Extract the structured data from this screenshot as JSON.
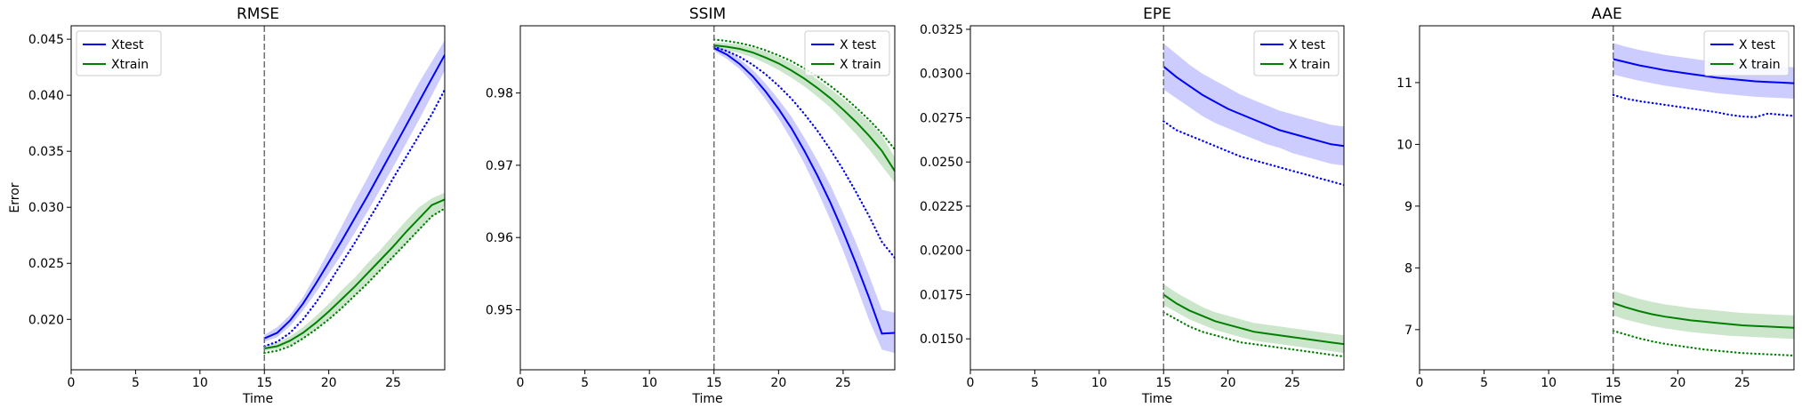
{
  "chart_data": [
    {
      "type": "line",
      "title": "RMSE",
      "xlabel": "Time",
      "ylabel": "Error",
      "xlim": [
        0,
        29
      ],
      "ylim": [
        0.0155,
        0.0462
      ],
      "xticks": [
        0,
        5,
        10,
        15,
        20,
        25
      ],
      "yticks": [
        0.02,
        0.025,
        0.03,
        0.035,
        0.04,
        0.045
      ],
      "ytick_labels": [
        "0.020",
        "0.025",
        "0.030",
        "0.035",
        "0.040",
        "0.045"
      ],
      "vline_x": 15,
      "legend": {
        "position": "upper-left",
        "entries": [
          {
            "label": "Xtest",
            "color": "#0000ff"
          },
          {
            "label": "Xtrain",
            "color": "#008000"
          }
        ]
      },
      "x": [
        15,
        16,
        17,
        18,
        19,
        20,
        21,
        22,
        23,
        24,
        25,
        26,
        27,
        28,
        29
      ],
      "series": [
        {
          "color": "#0000ff",
          "style": "solid",
          "values": [
            0.0183,
            0.0188,
            0.0199,
            0.0214,
            0.0232,
            0.0251,
            0.027,
            0.029,
            0.031,
            0.0331,
            0.0352,
            0.0373,
            0.0394,
            0.0415,
            0.0436
          ],
          "band_low": [
            0.018,
            0.0184,
            0.0194,
            0.0208,
            0.0224,
            0.0241,
            0.0258,
            0.0277,
            0.0296,
            0.0316,
            0.0336,
            0.0357,
            0.0378,
            0.04,
            0.0422
          ],
          "band_high": [
            0.0186,
            0.0193,
            0.0204,
            0.022,
            0.024,
            0.0261,
            0.0283,
            0.0305,
            0.0326,
            0.0348,
            0.0369,
            0.039,
            0.0411,
            0.043,
            0.0449
          ]
        },
        {
          "color": "#0000ff",
          "style": "dotted",
          "values": [
            0.0176,
            0.018,
            0.0188,
            0.02,
            0.0215,
            0.0232,
            0.025,
            0.0268,
            0.0287,
            0.0306,
            0.0326,
            0.0345,
            0.0364,
            0.0383,
            0.0405
          ]
        },
        {
          "color": "#008000",
          "style": "solid",
          "values": [
            0.0174,
            0.0176,
            0.0181,
            0.0188,
            0.0197,
            0.0207,
            0.0218,
            0.0229,
            0.0241,
            0.0253,
            0.0265,
            0.0278,
            0.029,
            0.0302,
            0.0307
          ],
          "band_low": [
            0.0172,
            0.0173,
            0.0177,
            0.0183,
            0.0191,
            0.02,
            0.021,
            0.0221,
            0.0232,
            0.0243,
            0.0255,
            0.0267,
            0.0279,
            0.0291,
            0.0301
          ],
          "band_high": [
            0.0176,
            0.0179,
            0.0185,
            0.0193,
            0.0203,
            0.0214,
            0.0226,
            0.0237,
            0.025,
            0.0262,
            0.0275,
            0.0288,
            0.03,
            0.0308,
            0.0313
          ]
        },
        {
          "color": "#008000",
          "style": "dotted",
          "values": [
            0.017,
            0.0172,
            0.0176,
            0.0183,
            0.0191,
            0.02,
            0.021,
            0.0221,
            0.0232,
            0.0244,
            0.0256,
            0.0268,
            0.028,
            0.0292,
            0.0299
          ]
        }
      ]
    },
    {
      "type": "line",
      "title": "SSIM",
      "xlabel": "Time",
      "ylabel": "",
      "xlim": [
        0,
        29
      ],
      "ylim": [
        0.9417,
        0.9893
      ],
      "xticks": [
        0,
        5,
        10,
        15,
        20,
        25
      ],
      "yticks": [
        0.95,
        0.96,
        0.97,
        0.98
      ],
      "ytick_labels": [
        "0.95",
        "0.96",
        "0.97",
        "0.98"
      ],
      "vline_x": 15,
      "legend": {
        "position": "upper-right",
        "entries": [
          {
            "label": "X test",
            "color": "#0000ff"
          },
          {
            "label": "X train",
            "color": "#008000"
          }
        ]
      },
      "x": [
        15,
        16,
        17,
        18,
        19,
        20,
        21,
        22,
        23,
        24,
        25,
        26,
        27,
        28,
        29
      ],
      "series": [
        {
          "color": "#0000ff",
          "style": "solid",
          "values": [
            0.9862,
            0.9853,
            0.984,
            0.9823,
            0.9802,
            0.9778,
            0.9751,
            0.972,
            0.9686,
            0.9649,
            0.9608,
            0.9564,
            0.9517,
            0.9467,
            0.9468
          ],
          "band_low": [
            0.9858,
            0.9847,
            0.9833,
            0.9814,
            0.9791,
            0.9765,
            0.9735,
            0.9702,
            0.9665,
            0.9625,
            0.9582,
            0.9535,
            0.9486,
            0.9445,
            0.944
          ],
          "band_high": [
            0.9866,
            0.9859,
            0.9847,
            0.9832,
            0.9813,
            0.9791,
            0.9767,
            0.9738,
            0.9707,
            0.9673,
            0.9634,
            0.9593,
            0.9548,
            0.95,
            0.9496
          ]
        },
        {
          "color": "#0000ff",
          "style": "dotted",
          "values": [
            0.9864,
            0.9858,
            0.985,
            0.9839,
            0.9826,
            0.981,
            0.9792,
            0.9771,
            0.9748,
            0.9722,
            0.9694,
            0.9663,
            0.963,
            0.9594,
            0.9572
          ]
        },
        {
          "color": "#008000",
          "style": "solid",
          "values": [
            0.9866,
            0.9864,
            0.9861,
            0.9856,
            0.9849,
            0.9841,
            0.9831,
            0.982,
            0.9807,
            0.9793,
            0.9777,
            0.976,
            0.9741,
            0.972,
            0.9692
          ],
          "band_low": [
            0.9862,
            0.9859,
            0.9855,
            0.9849,
            0.9841,
            0.9832,
            0.9821,
            0.9809,
            0.9795,
            0.978,
            0.9762,
            0.9743,
            0.9722,
            0.9699,
            0.9676
          ],
          "band_high": [
            0.987,
            0.9869,
            0.9867,
            0.9863,
            0.9857,
            0.985,
            0.9841,
            0.9831,
            0.9819,
            0.9806,
            0.9792,
            0.9777,
            0.976,
            0.9741,
            0.9711
          ]
        },
        {
          "color": "#008000",
          "style": "dotted",
          "values": [
            0.9874,
            0.9872,
            0.9869,
            0.9865,
            0.9859,
            0.9852,
            0.9844,
            0.9834,
            0.9823,
            0.981,
            0.9796,
            0.978,
            0.9763,
            0.9744,
            0.9722
          ]
        }
      ]
    },
    {
      "type": "line",
      "title": "EPE",
      "xlabel": "Time",
      "ylabel": "",
      "xlim": [
        0,
        29
      ],
      "ylim": [
        0.01325,
        0.0327
      ],
      "xticks": [
        0,
        5,
        10,
        15,
        20,
        25
      ],
      "yticks": [
        0.015,
        0.0175,
        0.02,
        0.0225,
        0.025,
        0.0275,
        0.03,
        0.0325
      ],
      "ytick_labels": [
        "0.0150",
        "0.0175",
        "0.0200",
        "0.0225",
        "0.0250",
        "0.0275",
        "0.0300",
        "0.0325"
      ],
      "vline_x": 15,
      "legend": {
        "position": "upper-right",
        "entries": [
          {
            "label": "X test",
            "color": "#0000ff"
          },
          {
            "label": "X train",
            "color": "#008000"
          }
        ]
      },
      "x": [
        15,
        16,
        17,
        18,
        19,
        20,
        21,
        22,
        23,
        24,
        25,
        26,
        27,
        28,
        29
      ],
      "series": [
        {
          "color": "#0000ff",
          "style": "solid",
          "values": [
            0.0304,
            0.0298,
            0.0293,
            0.0288,
            0.0284,
            0.028,
            0.0277,
            0.0274,
            0.0271,
            0.0268,
            0.0266,
            0.0264,
            0.0262,
            0.026,
            0.0259
          ],
          "band_low": [
            0.0291,
            0.0286,
            0.0281,
            0.0276,
            0.0272,
            0.0269,
            0.0266,
            0.0263,
            0.026,
            0.0258,
            0.0255,
            0.0253,
            0.0251,
            0.0249,
            0.0248
          ],
          "band_high": [
            0.0317,
            0.0311,
            0.0305,
            0.03,
            0.0296,
            0.0292,
            0.0288,
            0.0285,
            0.0282,
            0.0279,
            0.0277,
            0.0275,
            0.0273,
            0.0271,
            0.027
          ]
        },
        {
          "color": "#0000ff",
          "style": "dotted",
          "values": [
            0.0273,
            0.0268,
            0.0265,
            0.0262,
            0.0259,
            0.0256,
            0.0253,
            0.0251,
            0.0249,
            0.0247,
            0.0245,
            0.0243,
            0.0241,
            0.0239,
            0.0237
          ]
        },
        {
          "color": "#008000",
          "style": "solid",
          "values": [
            0.0175,
            0.017,
            0.0166,
            0.0163,
            0.016,
            0.0158,
            0.0156,
            0.0154,
            0.0153,
            0.0152,
            0.0151,
            0.015,
            0.0149,
            0.0148,
            0.0147
          ],
          "band_low": [
            0.0169,
            0.0165,
            0.0161,
            0.0158,
            0.0155,
            0.0153,
            0.0151,
            0.0149,
            0.0148,
            0.0147,
            0.0146,
            0.0145,
            0.0144,
            0.0143,
            0.0142
          ],
          "band_high": [
            0.0181,
            0.0176,
            0.0172,
            0.0168,
            0.0165,
            0.0163,
            0.0161,
            0.0159,
            0.0158,
            0.0157,
            0.0156,
            0.0155,
            0.0154,
            0.0153,
            0.0152
          ]
        },
        {
          "color": "#008000",
          "style": "dotted",
          "values": [
            0.0165,
            0.0161,
            0.0157,
            0.0154,
            0.0152,
            0.015,
            0.0148,
            0.0147,
            0.0146,
            0.0145,
            0.0144,
            0.0143,
            0.0142,
            0.0141,
            0.014
          ]
        }
      ]
    },
    {
      "type": "line",
      "title": "AAE",
      "xlabel": "Time",
      "ylabel": "",
      "xlim": [
        0,
        29
      ],
      "ylim": [
        6.35,
        11.92
      ],
      "xticks": [
        0,
        5,
        10,
        15,
        20,
        25
      ],
      "yticks": [
        7,
        8,
        9,
        10,
        11
      ],
      "ytick_labels": [
        "7",
        "8",
        "9",
        "10",
        "11"
      ],
      "vline_x": 15,
      "legend": {
        "position": "upper-right",
        "entries": [
          {
            "label": "X test",
            "color": "#0000ff"
          },
          {
            "label": "X train",
            "color": "#008000"
          }
        ]
      },
      "x": [
        15,
        16,
        17,
        18,
        19,
        20,
        21,
        22,
        23,
        24,
        25,
        26,
        27,
        28,
        29
      ],
      "series": [
        {
          "color": "#0000ff",
          "style": "solid",
          "values": [
            11.38,
            11.33,
            11.28,
            11.24,
            11.2,
            11.17,
            11.14,
            11.11,
            11.08,
            11.06,
            11.04,
            11.02,
            11.01,
            11.0,
            10.99
          ],
          "band_low": [
            11.13,
            11.08,
            11.03,
            10.99,
            10.95,
            10.92,
            10.89,
            10.86,
            10.83,
            10.81,
            10.79,
            10.77,
            10.76,
            10.75,
            10.74
          ],
          "band_high": [
            11.64,
            11.58,
            11.53,
            11.49,
            11.45,
            11.42,
            11.39,
            11.36,
            11.34,
            11.32,
            11.3,
            11.28,
            11.27,
            11.26,
            11.25
          ]
        },
        {
          "color": "#0000ff",
          "style": "dotted",
          "values": [
            10.8,
            10.74,
            10.7,
            10.67,
            10.64,
            10.61,
            10.58,
            10.55,
            10.52,
            10.48,
            10.45,
            10.44,
            10.5,
            10.48,
            10.46
          ]
        },
        {
          "color": "#008000",
          "style": "solid",
          "values": [
            7.43,
            7.36,
            7.3,
            7.25,
            7.21,
            7.18,
            7.15,
            7.13,
            7.11,
            7.09,
            7.07,
            7.06,
            7.05,
            7.04,
            7.03
          ],
          "band_low": [
            7.23,
            7.16,
            7.11,
            7.06,
            7.02,
            6.99,
            6.96,
            6.94,
            6.92,
            6.9,
            6.89,
            6.88,
            6.87,
            6.86,
            6.85
          ],
          "band_high": [
            7.63,
            7.56,
            7.5,
            7.45,
            7.41,
            7.38,
            7.35,
            7.33,
            7.31,
            7.29,
            7.27,
            7.26,
            7.25,
            7.24,
            7.23
          ]
        },
        {
          "color": "#008000",
          "style": "dotted",
          "values": [
            6.98,
            6.92,
            6.86,
            6.81,
            6.77,
            6.74,
            6.71,
            6.68,
            6.66,
            6.64,
            6.62,
            6.61,
            6.6,
            6.59,
            6.58
          ]
        }
      ]
    }
  ]
}
